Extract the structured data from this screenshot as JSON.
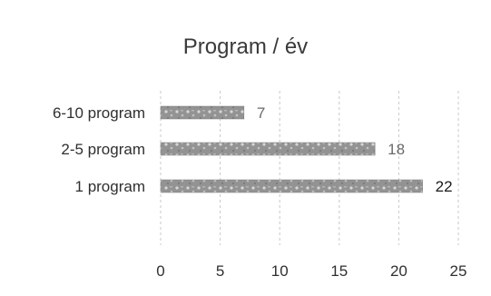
{
  "chart_data": {
    "type": "bar",
    "orientation": "horizontal",
    "title": "Program / év",
    "categories": [
      "6-10 program",
      "2-5 program",
      "1 program"
    ],
    "values": [
      7,
      18,
      22
    ],
    "data_labels": [
      "7",
      "18",
      "22"
    ],
    "xlim": [
      0,
      25
    ],
    "x_ticks": [
      "0",
      "5",
      "10",
      "15",
      "20",
      "25"
    ],
    "xlabel": "",
    "ylabel": "",
    "grid": "vertical dashed",
    "legend": "none",
    "bar_color": "#8f8f8f"
  }
}
